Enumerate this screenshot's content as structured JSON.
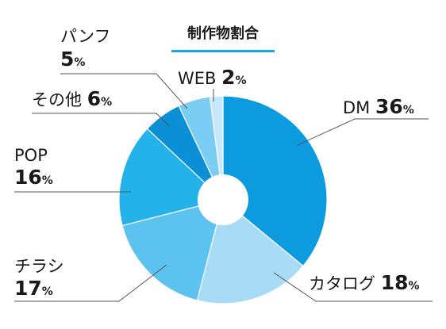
{
  "chart_data": {
    "type": "pie",
    "title": "制作物割合",
    "donut": true,
    "unit": "%",
    "slices": [
      {
        "name": "DM",
        "value": 36,
        "color": "#0d9be0"
      },
      {
        "name": "カタログ",
        "value": 18,
        "color": "#a8dbf6"
      },
      {
        "name": "チラシ",
        "value": 17,
        "color": "#5cc3f0"
      },
      {
        "name": "POP",
        "value": 16,
        "color": "#24b2eb"
      },
      {
        "name": "その他",
        "value": 6,
        "color": "#0b8fd6"
      },
      {
        "name": "パンフ",
        "value": 5,
        "color": "#7ccdf3"
      },
      {
        "name": "WEB",
        "value": 2,
        "color": "#c6e8fa"
      }
    ]
  },
  "colors": {
    "title_underline": "#17a6e6",
    "leader_line": "#555555",
    "text": "#1a1a1a"
  }
}
